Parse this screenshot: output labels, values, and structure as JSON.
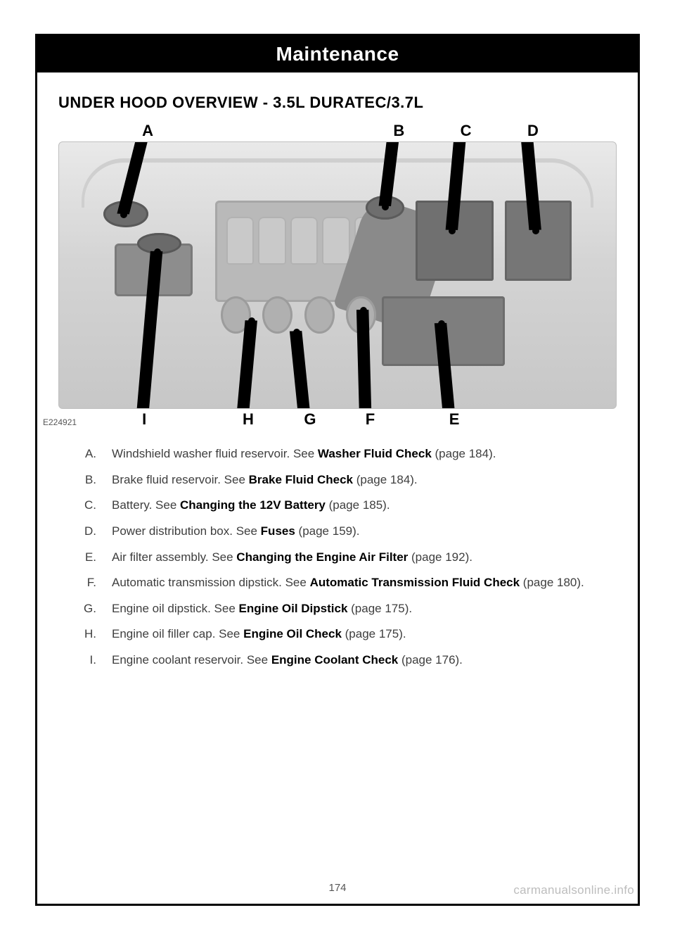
{
  "header": {
    "title": "Maintenance"
  },
  "section": {
    "title": "UNDER HOOD OVERVIEW - 3.5L DURATEC/3.7L"
  },
  "figure": {
    "id": "E224921",
    "top_labels": [
      {
        "letter": "A",
        "left_pct": 15
      },
      {
        "letter": "B",
        "left_pct": 60
      },
      {
        "letter": "C",
        "left_pct": 72
      },
      {
        "letter": "D",
        "left_pct": 84
      }
    ],
    "bottom_labels": [
      {
        "letter": "I",
        "left_pct": 15
      },
      {
        "letter": "H",
        "left_pct": 33
      },
      {
        "letter": "G",
        "left_pct": 44
      },
      {
        "letter": "F",
        "left_pct": 55
      },
      {
        "letter": "E",
        "left_pct": 70
      }
    ]
  },
  "legend": [
    {
      "letter": "A.",
      "pre": "Windshield washer fluid reservoir.  See ",
      "bold": "Washer Fluid Check",
      "post": " (page 184)."
    },
    {
      "letter": "B.",
      "pre": "Brake fluid reservoir.  See ",
      "bold": "Brake Fluid Check",
      "post": " (page 184)."
    },
    {
      "letter": "C.",
      "pre": "Battery.  See ",
      "bold": "Changing the 12V Battery",
      "post": " (page 185)."
    },
    {
      "letter": "D.",
      "pre": "Power distribution box.  See ",
      "bold": "Fuses",
      "post": " (page 159)."
    },
    {
      "letter": "E.",
      "pre": "Air filter assembly.  See ",
      "bold": "Changing the Engine Air Filter",
      "post": " (page 192)."
    },
    {
      "letter": "F.",
      "pre": "Automatic transmission dipstick.  See ",
      "bold": "Automatic Transmission Fluid Check",
      "post": " (page 180)."
    },
    {
      "letter": "G.",
      "pre": "Engine oil dipstick.  See ",
      "bold": "Engine Oil Dipstick",
      "post": " (page 175)."
    },
    {
      "letter": "H.",
      "pre": "Engine oil filler cap.  See ",
      "bold": "Engine Oil Check",
      "post": " (page 175)."
    },
    {
      "letter": "I.",
      "pre": "Engine coolant reservoir.  See ",
      "bold": "Engine Coolant Check",
      "post": " (page 176)."
    }
  ],
  "page_number": "174",
  "watermark": "carmanualsonline.info",
  "colors": {
    "text": "#3e3e3e",
    "bold": "#000000",
    "gray_bg": "#d4d4d4"
  }
}
